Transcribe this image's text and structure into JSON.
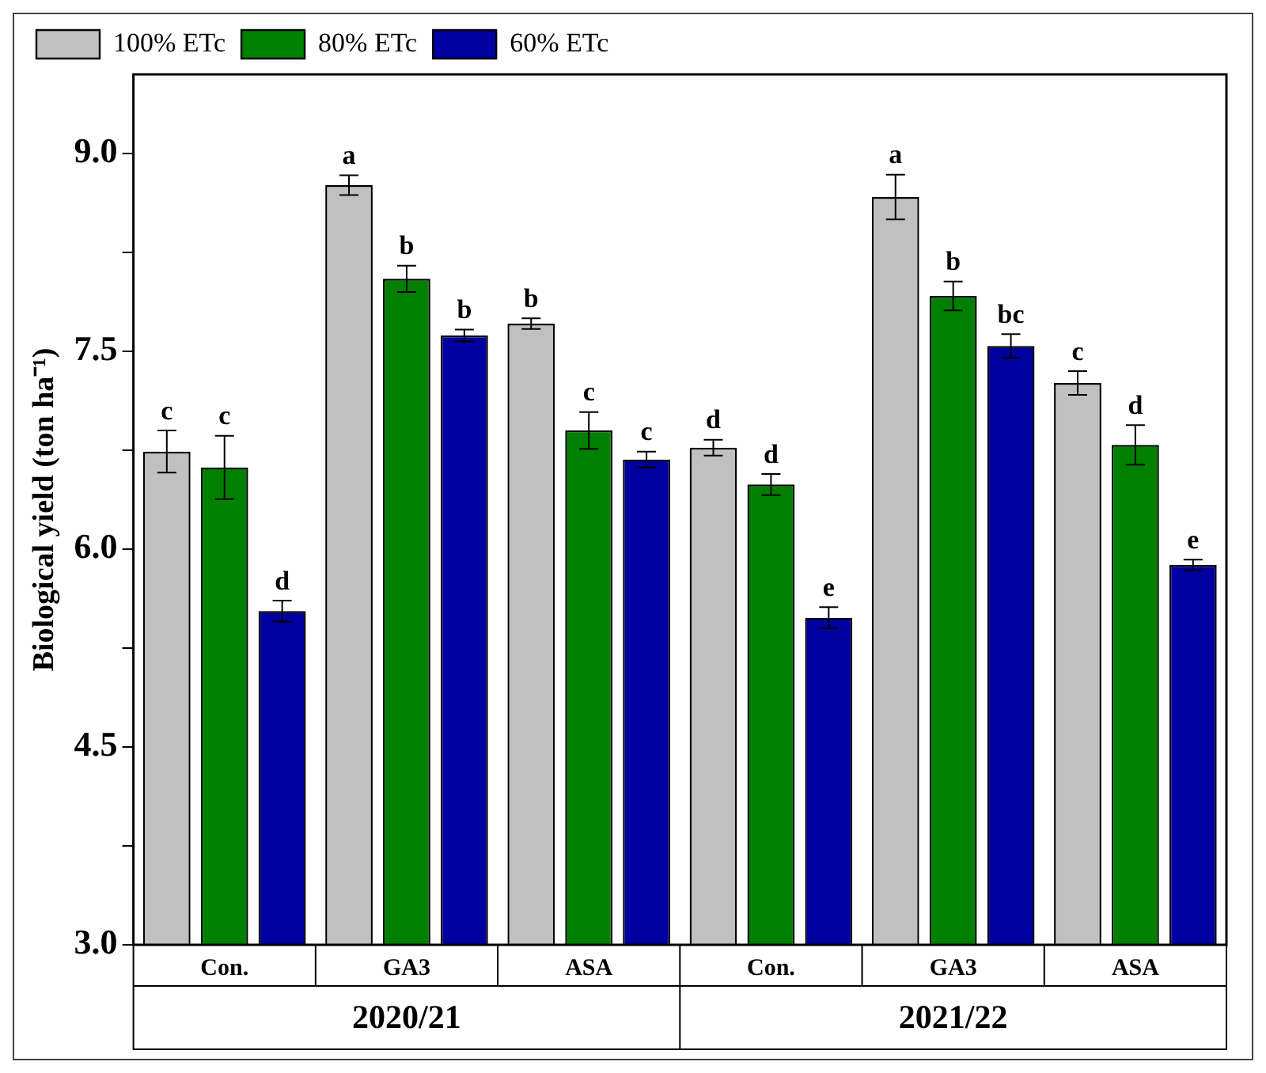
{
  "chart_data": {
    "type": "bar",
    "ylabel": "Biological yield (ton ha⁻¹)",
    "categories": [
      "Con.",
      "GA3",
      "ASA",
      "Con.",
      "GA3",
      "ASA"
    ],
    "series": [
      {
        "name": "100% ETc",
        "color": "#c0c0c0",
        "values": [
          6.74,
          8.76,
          7.71,
          6.77,
          8.67,
          7.26
        ],
        "errors": [
          0.16,
          0.075,
          0.04,
          0.06,
          0.17,
          0.09
        ],
        "value_labels": [
          "c",
          "a",
          "b",
          "d",
          "a",
          "c"
        ]
      },
      {
        "name": "80% ETc",
        "color": "#008000",
        "values": [
          6.62,
          8.05,
          6.9,
          6.49,
          7.92,
          6.79
        ],
        "errors": [
          0.24,
          0.1,
          0.14,
          0.08,
          0.11,
          0.15
        ],
        "value_labels": [
          "c",
          "b",
          "c",
          "d",
          "b",
          "d"
        ]
      },
      {
        "name": "60% ETc",
        "color": "#0000a0",
        "values": [
          5.53,
          7.62,
          6.68,
          5.48,
          7.54,
          5.88
        ],
        "errors": [
          0.08,
          0.045,
          0.06,
          0.08,
          0.09,
          0.04
        ],
        "value_labels": [
          "d",
          "b",
          "c",
          "e",
          "bc",
          "e"
        ]
      }
    ],
    "ylim": [
      3,
      9.6
    ],
    "yticks": [
      {
        "value": 3,
        "label": "3.0"
      },
      {
        "value": 3.75,
        "label": null
      },
      {
        "value": 4.5,
        "label": "4.5"
      },
      {
        "value": 5.25,
        "label": null
      },
      {
        "value": 6,
        "label": "6.0"
      },
      {
        "value": 6.75,
        "label": null
      },
      {
        "value": 7.5,
        "label": "7.5"
      },
      {
        "value": 8.25,
        "label": null
      },
      {
        "value": 9,
        "label": "9.0"
      }
    ],
    "annotations": [
      "2020/21",
      "2021/22"
    ],
    "legend": "top left",
    "grid": false
  }
}
